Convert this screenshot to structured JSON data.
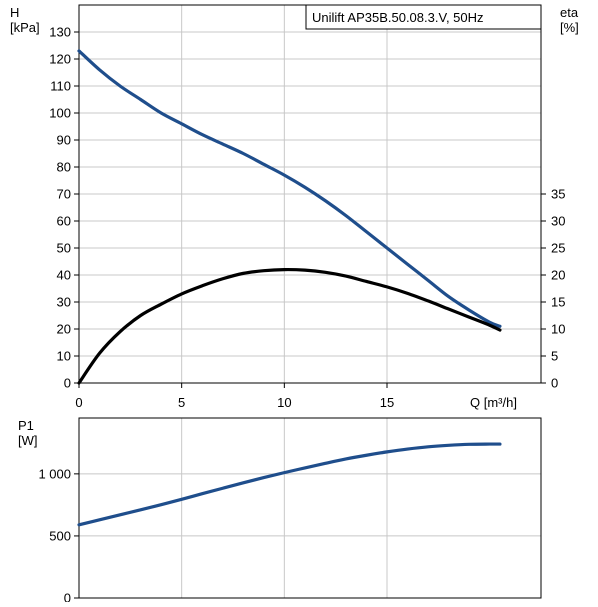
{
  "chart_data": [
    {
      "type": "line",
      "title": "Unilift AP35B.50.08.3.V, 50Hz",
      "xlabel": "Q [m³/h]",
      "xlim": [
        0,
        22.5
      ],
      "xticks": [
        0,
        5,
        10,
        15
      ],
      "ylabel_left": [
        "H",
        "[kPa]"
      ],
      "ylim_left": [
        0,
        140
      ],
      "yticks_left": [
        0,
        10,
        20,
        30,
        40,
        50,
        60,
        70,
        80,
        90,
        100,
        110,
        120,
        130
      ],
      "ylabel_right": [
        "eta",
        "[%]"
      ],
      "ylim_right": [
        0,
        70
      ],
      "yticks_right": [
        0,
        5,
        10,
        15,
        20,
        25,
        30,
        35
      ],
      "grid": true,
      "series": [
        {
          "axis": "left",
          "color": "#1f4e8c",
          "x": [
            0,
            1,
            2,
            3,
            4,
            5,
            6,
            7,
            8,
            9,
            10,
            11,
            12,
            13,
            14,
            15,
            16,
            17,
            18,
            19,
            20,
            20.5
          ],
          "y": [
            123,
            116,
            110,
            105,
            100,
            96,
            92,
            88.5,
            85,
            81,
            77,
            72.5,
            67.5,
            62,
            56,
            50,
            44,
            38,
            32,
            27,
            22.5,
            21
          ]
        },
        {
          "axis": "right",
          "color": "#000000",
          "x": [
            0,
            1,
            2,
            3,
            4,
            5,
            6,
            7,
            8,
            9,
            10,
            11,
            12,
            13,
            14,
            15,
            16,
            17,
            18,
            19,
            20,
            20.5
          ],
          "y": [
            0,
            5.5,
            9.5,
            12.5,
            14.6,
            16.5,
            18,
            19.3,
            20.3,
            20.8,
            21,
            20.9,
            20.5,
            19.8,
            18.8,
            17.8,
            16.6,
            15.2,
            13.7,
            12.2,
            10.7,
            9.8
          ]
        }
      ]
    },
    {
      "type": "line",
      "xlim": [
        0,
        22.5
      ],
      "ylabel": [
        "P1",
        "[W]"
      ],
      "ylim": [
        0,
        1450
      ],
      "yticks": [
        0,
        500,
        1000
      ],
      "ytick_labels": [
        "0",
        "500",
        "1 000"
      ],
      "grid": true,
      "series": [
        {
          "color": "#1f4e8c",
          "x": [
            0,
            1,
            2,
            3,
            4,
            5,
            6,
            7,
            8,
            9,
            10,
            11,
            12,
            13,
            14,
            15,
            16,
            17,
            18,
            19,
            20,
            20.5
          ],
          "y": [
            590,
            630,
            670,
            710,
            752,
            795,
            840,
            884,
            928,
            970,
            1010,
            1048,
            1085,
            1120,
            1150,
            1177,
            1200,
            1218,
            1230,
            1238,
            1240,
            1240
          ]
        }
      ]
    }
  ]
}
